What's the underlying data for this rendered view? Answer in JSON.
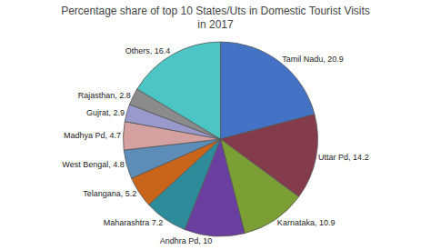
{
  "chart_data": {
    "type": "pie",
    "title": "Percentage share of top 10 States/Uts in Domestic Tourist Visits\nin 2017",
    "categories": [
      "Tamil Nadu",
      "Uttar Pd",
      "Karnataka",
      "Andhra Pd",
      "Maharashtra",
      "Telangana",
      "West Bengal",
      "Madhya Pd",
      "Gujrat",
      "Rajasthan",
      "Others"
    ],
    "values": [
      20.9,
      14.2,
      10.9,
      10.0,
      7.2,
      5.2,
      4.8,
      4.7,
      2.9,
      2.8,
      16.4
    ],
    "value_labels": [
      "Tamil Nadu, 20.9",
      "Uttar Pd, 14.2",
      "Karnataka, 10.9",
      "Andhra Pd, 10",
      "Maharashtra 7.2",
      "Telangana, 5.2",
      "West Bengal, 4.8",
      "Madhya Pd, 4.7",
      "Gujrat, 2.9",
      "Rajasthan, 2.8",
      "Others, 16.4"
    ],
    "colors": [
      "#4472C4",
      "#843C4C",
      "#7B9F35",
      "#6B3FA0",
      "#2E8B9A",
      "#C8651A",
      "#5B8DB8",
      "#D4A0A0",
      "#9999CC",
      "#8B8B8B",
      "#4EC5C5"
    ],
    "data_labels": true
  }
}
